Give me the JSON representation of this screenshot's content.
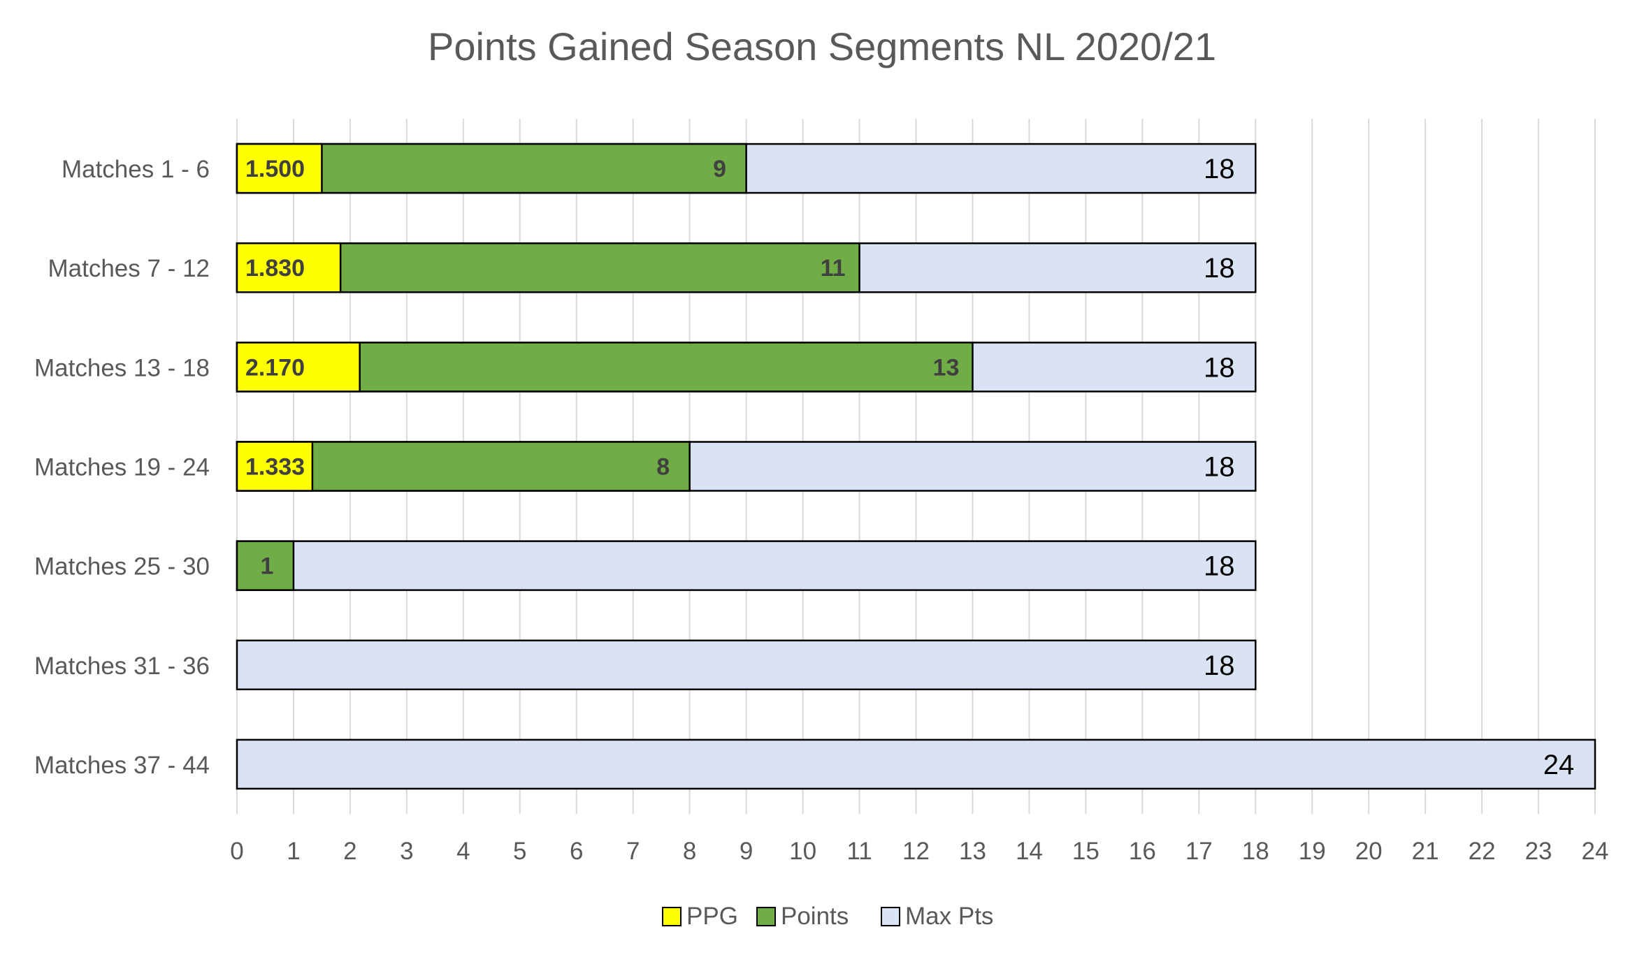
{
  "chart_data": {
    "type": "bar",
    "orientation": "horizontal",
    "title": "Points Gained Season Segments NL 2020/21",
    "xlabel": "",
    "ylabel": "",
    "xlim": [
      0,
      24
    ],
    "x_ticks": [
      0,
      1,
      2,
      3,
      4,
      5,
      6,
      7,
      8,
      9,
      10,
      11,
      12,
      13,
      14,
      15,
      16,
      17,
      18,
      19,
      20,
      21,
      22,
      23,
      24
    ],
    "grid": true,
    "legend_position": "bottom",
    "categories": [
      "Matches 1 - 6",
      "Matches 7 - 12",
      "Matches 13 - 18",
      "Matches 19 - 24",
      "Matches 25 - 30",
      "Matches 31 - 36",
      "Matches 37 - 44"
    ],
    "series": [
      {
        "name": "PPG",
        "color": "#FFFF00",
        "values": [
          1.5,
          1.83,
          2.17,
          1.333,
          0,
          0,
          0
        ],
        "labels": [
          "1.500",
          "1.830",
          "2.170",
          "1.333",
          "",
          "",
          ""
        ]
      },
      {
        "name": "Points",
        "color": "#70AD47",
        "values": [
          9,
          11,
          13,
          8,
          1,
          0,
          0
        ],
        "labels": [
          "9",
          "11",
          "13",
          "8",
          "1",
          "",
          ""
        ]
      },
      {
        "name": "Max Pts",
        "color": "#DAE3F3",
        "values": [
          18,
          18,
          18,
          18,
          18,
          18,
          24
        ],
        "labels": [
          "18",
          "18",
          "18",
          "18",
          "18",
          "18",
          "24"
        ]
      }
    ]
  }
}
